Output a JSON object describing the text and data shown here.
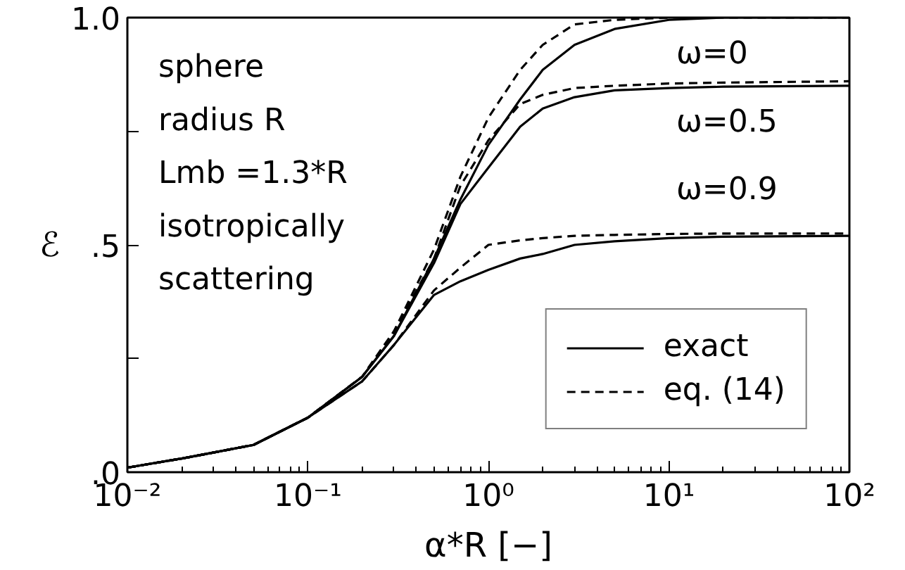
{
  "chart_data": {
    "type": "line",
    "xlabel": "α*R [−]",
    "ylabel": "ℰ",
    "x": [
      0.01,
      0.02,
      0.05,
      0.1,
      0.2,
      0.3,
      0.5,
      0.7,
      1,
      1.5,
      2,
      3,
      5,
      10,
      20,
      100
    ],
    "series": [
      {
        "name": "exact",
        "color": "#000000",
        "line_style": "solid",
        "values": [
          0.01,
          0.03,
          0.06,
          0.12,
          0.21,
          0.3,
          0.47,
          0.6,
          0.72,
          0.82,
          0.885,
          0.94,
          0.975,
          0.995,
          1.0,
          1.0
        ]
      },
      {
        "name": "eq. (14)",
        "color": "#000000",
        "line_style": "dashed",
        "values": [
          0.01,
          0.03,
          0.06,
          0.12,
          0.21,
          0.31,
          0.49,
          0.65,
          0.78,
          0.885,
          0.94,
          0.985,
          0.995,
          1.0,
          1.0,
          1.0
        ]
      },
      {
        "color": "#000000",
        "line_style": "solid",
        "values": [
          0.01,
          0.03,
          0.06,
          0.12,
          0.21,
          0.3,
          0.46,
          0.59,
          0.67,
          0.76,
          0.8,
          0.825,
          0.84,
          0.845,
          0.848,
          0.85
        ]
      },
      {
        "color": "#000000",
        "line_style": "dashed",
        "values": [
          0.01,
          0.03,
          0.06,
          0.12,
          0.21,
          0.31,
          0.47,
          0.63,
          0.73,
          0.81,
          0.83,
          0.845,
          0.85,
          0.855,
          0.857,
          0.86
        ]
      },
      {
        "color": "#000000",
        "line_style": "solid",
        "values": [
          0.01,
          0.03,
          0.06,
          0.12,
          0.2,
          0.28,
          0.39,
          0.42,
          0.445,
          0.47,
          0.48,
          0.5,
          0.508,
          0.515,
          0.518,
          0.52
        ]
      },
      {
        "color": "#000000",
        "line_style": "dashed",
        "values": [
          0.01,
          0.03,
          0.06,
          0.12,
          0.2,
          0.28,
          0.4,
          0.45,
          0.5,
          0.51,
          0.515,
          0.52,
          0.522,
          0.524,
          0.525,
          0.525
        ]
      }
    ],
    "xlim": [
      0.01,
      100
    ],
    "ylim": [
      0,
      1
    ],
    "log": "x",
    "xticks": [
      {
        "value": 0.01,
        "label": "10⁻²"
      },
      {
        "value": 0.1,
        "label": "10⁻¹"
      },
      {
        "value": 1,
        "label": "10⁰"
      },
      {
        "value": 10,
        "label": "10¹"
      },
      {
        "value": 100,
        "label": "10²"
      }
    ],
    "yticks": [
      {
        "value": 0,
        "label": ".0"
      },
      {
        "value": 0.25,
        "label": null
      },
      {
        "value": 0.5,
        "label": ".5"
      },
      {
        "value": 0.75,
        "label": null
      },
      {
        "value": 1,
        "label": "1.0"
      }
    ],
    "grid": false,
    "legend": "bottom right",
    "annotations": [
      "sphere",
      "radius R",
      "Lmb =1.3*R",
      "isotropically",
      "scattering",
      "ω=0",
      "ω=0.5",
      "ω=0.9"
    ]
  }
}
